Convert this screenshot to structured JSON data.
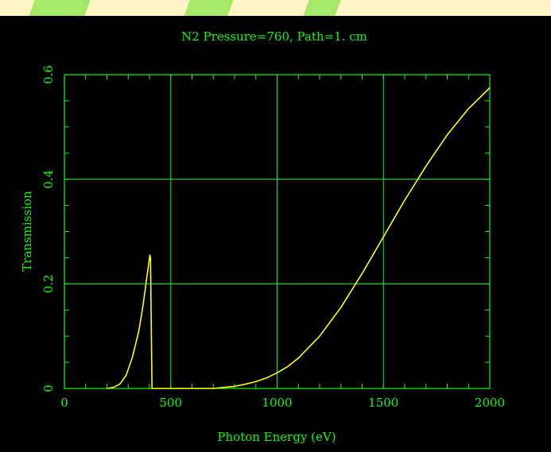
{
  "chart_data": {
    "type": "line",
    "title": "N2 Pressure=760, Path=1. cm",
    "xlabel": "Photon Energy (eV)",
    "ylabel": "Transmission",
    "xlim": [
      0,
      2000
    ],
    "ylim": [
      0,
      0.6
    ],
    "xticks": [
      "0",
      "500",
      "1000",
      "1500",
      "2000"
    ],
    "yticks": [
      "0",
      "0.2",
      "0.4",
      "0.6"
    ],
    "grid": true,
    "colors": {
      "background": "#000000",
      "axes": "#00ff00",
      "text": "#00ff00",
      "line": "#ffff00"
    },
    "series": [
      {
        "x": [
          200,
          230,
          260,
          290,
          320,
          350,
          370,
          385,
          395,
          400,
          402,
          405,
          409,
          412,
          420,
          700,
          750,
          800,
          850,
          900,
          950,
          1000,
          1050,
          1100,
          1200,
          1300,
          1400,
          1500,
          1600,
          1700,
          1800,
          1900,
          2000
        ],
        "y": [
          0.0,
          0.002,
          0.008,
          0.025,
          0.06,
          0.11,
          0.16,
          0.205,
          0.235,
          0.25,
          0.255,
          0.25,
          0.1,
          0.0,
          0.0,
          0.0,
          0.002,
          0.004,
          0.008,
          0.013,
          0.02,
          0.03,
          0.042,
          0.058,
          0.1,
          0.155,
          0.22,
          0.29,
          0.36,
          0.425,
          0.485,
          0.535,
          0.575
        ]
      }
    ]
  }
}
